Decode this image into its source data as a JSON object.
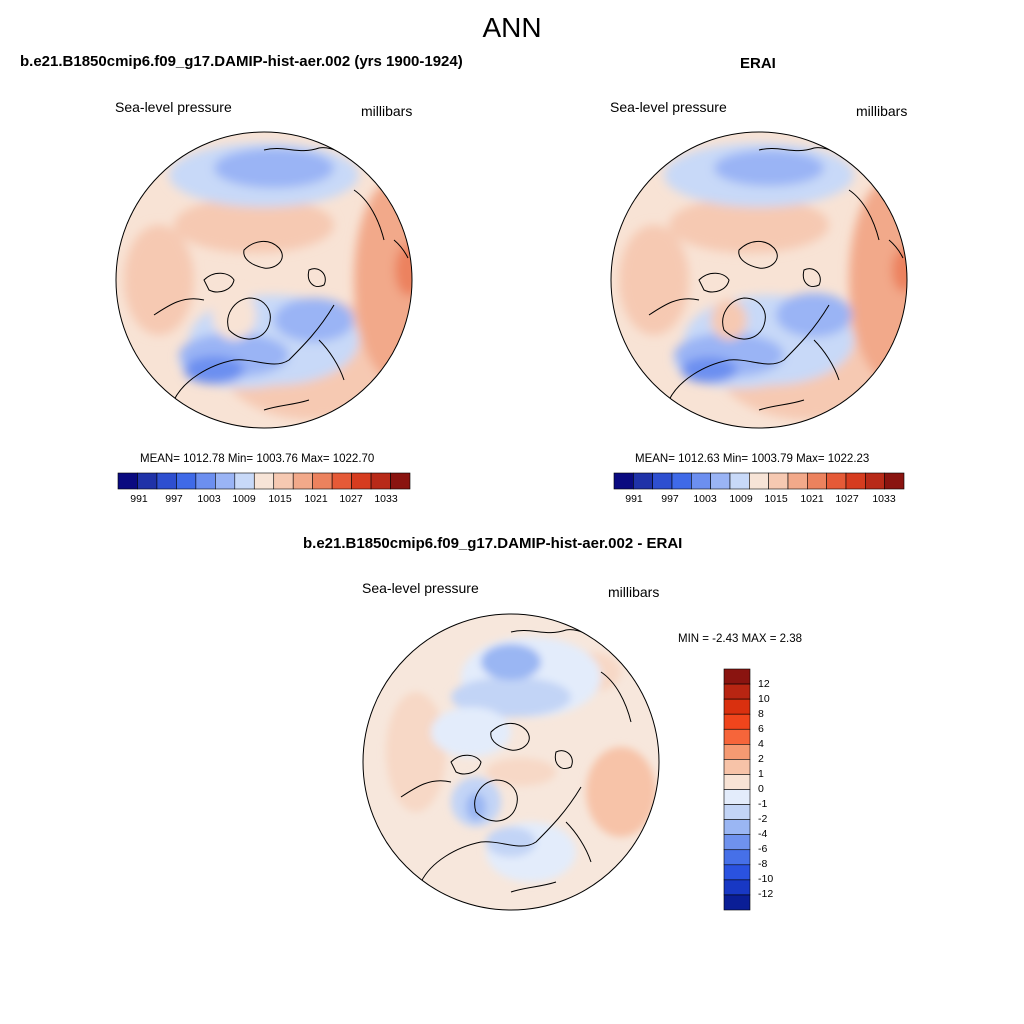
{
  "title": "ANN",
  "panels": [
    {
      "id": "model",
      "case_title": "b.e21.B1850cmip6.f09_g17.DAMIP-hist-aer.002 (yrs 1900-1924)",
      "variable": "Sea-level pressure",
      "units": "millibars",
      "stats": "MEAN= 1012.78  Min= 1003.76  Max= 1022.70",
      "mean": 1012.78,
      "min": 1003.76,
      "max": 1022.7
    },
    {
      "id": "obs",
      "case_title": "ERAI",
      "variable": "Sea-level pressure",
      "units": "millibars",
      "stats": "MEAN= 1012.63  Min= 1003.79  Max= 1022.23",
      "mean": 1012.63,
      "min": 1003.79,
      "max": 1022.23
    },
    {
      "id": "diff",
      "case_title": "b.e21.B1850cmip6.f09_g17.DAMIP-hist-aer.002 - ERAI",
      "variable": "Sea-level pressure",
      "units": "millibars",
      "stats": "MIN =  -2.43 MAX =   2.38",
      "min": -2.43,
      "max": 2.38
    }
  ],
  "colorbar_abs": {
    "labels": [
      "991",
      "997",
      "1003",
      "1009",
      "1015",
      "1021",
      "1027",
      "1033"
    ],
    "colors": [
      "#0a0a80",
      "#1f32a8",
      "#2e4fd0",
      "#3f6ae8",
      "#6c8ff0",
      "#9ab4f5",
      "#c8d9f8",
      "#f7e4d7",
      "#f6c9b2",
      "#f2a98a",
      "#ec825e",
      "#e55a37",
      "#d63c1f",
      "#b82a18",
      "#8a1410"
    ]
  },
  "colorbar_diff": {
    "labels": [
      "12",
      "10",
      "8",
      "6",
      "4",
      "2",
      "1",
      "0",
      "-1",
      "-2",
      "-4",
      "-6",
      "-8",
      "-10",
      "-12"
    ],
    "colors": [
      "#8a1410",
      "#b82512",
      "#d9300f",
      "#f0451c",
      "#f6653a",
      "#f59a72",
      "#f7c3a8",
      "#f8e3d5",
      "#e3ecfb",
      "#c2d4f6",
      "#9ab6f3",
      "#6f92ee",
      "#4670e8",
      "#2a52e0",
      "#1838c4",
      "#0a1e96"
    ]
  }
}
